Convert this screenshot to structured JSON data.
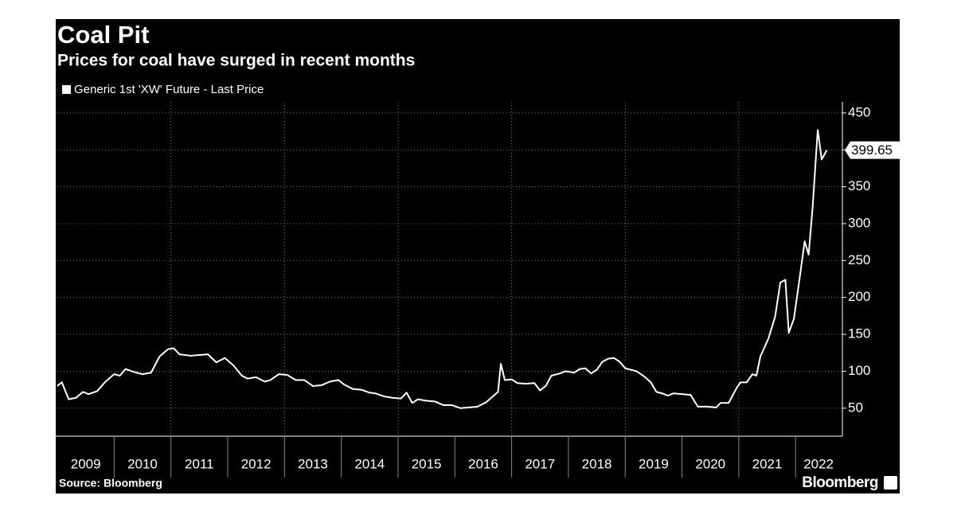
{
  "chart_data": {
    "type": "line",
    "title": "Coal Pit",
    "subtitle": "Prices for coal have surged in recent months",
    "source": "Source: Bloomberg",
    "brand": "Bloomberg",
    "x": [
      2009.0,
      2009.08,
      2009.2,
      2009.33,
      2009.45,
      2009.55,
      2009.7,
      2009.85,
      2010.0,
      2010.1,
      2010.2,
      2010.35,
      2010.5,
      2010.65,
      2010.8,
      2010.95,
      2011.05,
      2011.15,
      2011.35,
      2011.5,
      2011.65,
      2011.8,
      2011.95,
      2012.1,
      2012.25,
      2012.35,
      2012.5,
      2012.65,
      2012.75,
      2012.9,
      2013.05,
      2013.2,
      2013.35,
      2013.5,
      2013.65,
      2013.8,
      2013.95,
      2014.05,
      2014.2,
      2014.35,
      2014.5,
      2014.6,
      2014.75,
      2014.9,
      2015.05,
      2015.15,
      2015.25,
      2015.35,
      2015.5,
      2015.65,
      2015.8,
      2015.95,
      2016.1,
      2016.25,
      2016.4,
      2016.55,
      2016.7,
      2016.76,
      2016.81,
      2016.88,
      2017.0,
      2017.1,
      2017.25,
      2017.4,
      2017.5,
      2017.6,
      2017.7,
      2017.85,
      2017.95,
      2018.1,
      2018.2,
      2018.3,
      2018.4,
      2018.5,
      2018.6,
      2018.7,
      2018.8,
      2018.9,
      2019.0,
      2019.2,
      2019.35,
      2019.45,
      2019.55,
      2019.65,
      2019.75,
      2019.85,
      2020.0,
      2020.15,
      2020.28,
      2020.45,
      2020.6,
      2020.68,
      2020.82,
      2020.96,
      2021.03,
      2021.14,
      2021.24,
      2021.31,
      2021.38,
      2021.52,
      2021.64,
      2021.73,
      2021.82,
      2021.88,
      2021.97,
      2022.06,
      2022.16,
      2022.23,
      2022.3,
      2022.39,
      2022.46,
      2022.55
    ],
    "series": [
      {
        "name": "Generic 1st 'XW' Future - Last Price",
        "color": "#ffffff",
        "values": [
          80,
          85,
          62,
          64,
          72,
          69,
          73,
          86,
          96,
          94,
          103,
          99,
          96,
          98,
          120,
          130,
          131,
          123,
          121,
          122,
          123,
          112,
          118,
          108,
          94,
          90,
          92,
          86,
          88,
          96,
          95,
          88,
          88,
          80,
          81,
          86,
          88,
          82,
          76,
          75,
          71,
          70,
          66,
          64,
          63,
          71,
          57,
          62,
          60,
          59,
          54,
          54,
          50,
          51,
          52,
          58,
          68,
          72,
          110,
          88,
          89,
          84,
          83,
          84,
          74,
          80,
          94,
          97,
          100,
          98,
          103,
          104,
          97,
          102,
          113,
          117,
          118,
          113,
          104,
          100,
          92,
          85,
          72,
          70,
          67,
          70,
          69,
          68,
          52,
          52,
          51,
          57,
          57,
          77,
          85,
          85,
          96,
          94,
          120,
          144,
          174,
          220,
          224,
          152,
          171,
          220,
          276,
          258,
          322,
          427,
          387,
          399.65
        ]
      }
    ],
    "xlim": [
      2009,
      2022.81
    ],
    "xticks": [
      2009,
      2010,
      2011,
      2012,
      2013,
      2014,
      2015,
      2016,
      2017,
      2018,
      2019,
      2020,
      2021,
      2022
    ],
    "x_grid_step": 2,
    "ylim": [
      12,
      465
    ],
    "yticks": [
      50,
      100,
      150,
      200,
      250,
      300,
      350,
      400,
      450
    ],
    "y_axis_side": "right",
    "grid": true,
    "background": "#000000"
  }
}
